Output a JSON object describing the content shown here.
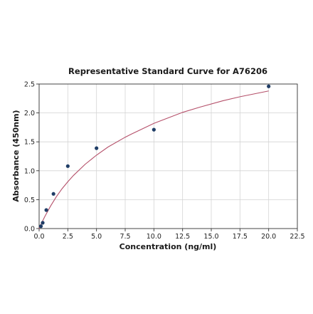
{
  "chart_data": {
    "type": "scatter",
    "title": "Representative Standard Curve for A76206",
    "xlabel": "Concentration (ng/ml)",
    "ylabel": "Absorbance (450nm)",
    "xlim": [
      0,
      22.5
    ],
    "ylim": [
      0,
      2.5
    ],
    "x_ticks": [
      "0.0",
      "2.5",
      "5.0",
      "7.5",
      "10.0",
      "12.5",
      "15.0",
      "17.5",
      "20.0",
      "22.5"
    ],
    "y_ticks": [
      "0.0",
      "0.5",
      "1.0",
      "1.5",
      "2.0",
      "2.5"
    ],
    "grid": true,
    "series": [
      {
        "kind": "points",
        "x": [
          0.156,
          0.312,
          0.625,
          1.25,
          2.5,
          5.0,
          10.0,
          20.0
        ],
        "y": [
          0.04,
          0.1,
          0.32,
          0.6,
          1.08,
          1.39,
          1.71,
          2.46
        ]
      },
      {
        "kind": "fitted-curve",
        "x": [
          0.0,
          0.25,
          0.5,
          1.0,
          1.5,
          2.0,
          2.5,
          3.0,
          4.0,
          5.0,
          6.0,
          7.5,
          8.0,
          10.0,
          12.5,
          14.0,
          16.0,
          17.5,
          18.0,
          20.0
        ],
        "y": [
          0.0,
          0.11,
          0.21,
          0.39,
          0.55,
          0.69,
          0.81,
          0.92,
          1.11,
          1.27,
          1.41,
          1.58,
          1.63,
          1.82,
          2.01,
          2.1,
          2.21,
          2.28,
          2.3,
          2.38
        ]
      }
    ],
    "colors": {
      "points": "#1f3d66",
      "curve": "#b5506a",
      "grid": "#d4d4d4",
      "axis": "#333333"
    }
  }
}
